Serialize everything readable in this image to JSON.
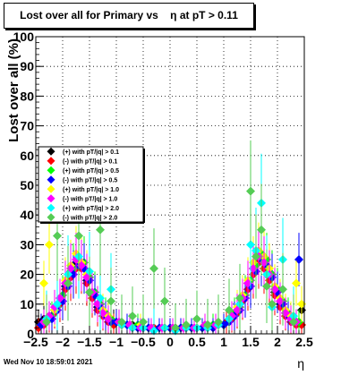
{
  "chart_data": {
    "type": "scatter",
    "title": "Lost over all for Primary vs    η at pT > 0.11",
    "xlabel": "η",
    "ylabel": "Lost over all (%)",
    "xlim": [
      -2.5,
      2.5
    ],
    "ylim": [
      0,
      100
    ],
    "xticks": [
      "−2.5",
      "−2",
      "−1.5",
      "−1",
      "−0.5",
      "0",
      "0.5",
      "1",
      "1.5",
      "2",
      "2.5"
    ],
    "yticks": [
      "0",
      "10",
      "20",
      "30",
      "40",
      "50",
      "60",
      "70",
      "80",
      "90",
      "100"
    ],
    "grid": true,
    "legend_position": "left",
    "series": [
      {
        "name": "(+) with pT/|q| > 0.1",
        "color": "#000000",
        "marker": "diamond",
        "x": [
          -2.45,
          -2.35,
          -2.25,
          -2.15,
          -2.05,
          -1.95,
          -1.85,
          -1.75,
          -1.65,
          -1.55,
          -1.45,
          -1.35,
          -1.25,
          -1.15,
          -1.05,
          -0.9,
          -0.7,
          -0.5,
          -0.3,
          -0.1,
          0.1,
          0.3,
          0.5,
          0.7,
          0.9,
          1.05,
          1.15,
          1.25,
          1.35,
          1.45,
          1.55,
          1.65,
          1.75,
          1.85,
          1.95,
          2.05,
          2.15,
          2.25,
          2.35,
          2.45
        ],
        "y": [
          4,
          5,
          6,
          8,
          12,
          16,
          21,
          24,
          23,
          18,
          13,
          9,
          7,
          5,
          4,
          3,
          3,
          2,
          2,
          2,
          2,
          2,
          2,
          3,
          3,
          4,
          6,
          8,
          12,
          17,
          22,
          26,
          24,
          19,
          14,
          10,
          7,
          5,
          4,
          8
        ]
      },
      {
        "name": "(-) with pT/|q| > 0.1",
        "color": "#ff0000",
        "marker": "diamond",
        "x": [
          -2.45,
          -2.35,
          -2.25,
          -2.15,
          -2.05,
          -1.95,
          -1.85,
          -1.75,
          -1.65,
          -1.55,
          -1.45,
          -1.35,
          -1.25,
          -1.15,
          -1.05,
          -0.9,
          -0.7,
          -0.5,
          -0.3,
          -0.1,
          0.1,
          0.3,
          0.5,
          0.7,
          0.9,
          1.05,
          1.15,
          1.25,
          1.35,
          1.45,
          1.55,
          1.65,
          1.75,
          1.85,
          1.95,
          2.05,
          2.15,
          2.25,
          2.35,
          2.45
        ],
        "y": [
          2,
          3,
          5,
          7,
          10,
          15,
          19,
          22,
          22,
          17,
          12,
          8,
          6,
          4,
          3,
          3,
          2,
          2,
          2,
          2,
          2,
          2,
          2,
          2,
          3,
          4,
          5,
          7,
          11,
          15,
          20,
          24,
          22,
          18,
          13,
          9,
          6,
          4,
          3,
          3
        ]
      },
      {
        "name": "(+) with pT/|q| > 0.5",
        "color": "#00ff00",
        "marker": "diamond",
        "x": [
          -2.4,
          -2.3,
          -2.2,
          -2.1,
          -2.0,
          -1.9,
          -1.8,
          -1.7,
          -1.6,
          -1.5,
          -1.4,
          -1.3,
          -1.2,
          -1.1,
          -1.0,
          -0.8,
          -0.6,
          -0.4,
          -0.2,
          0.0,
          0.2,
          0.4,
          0.6,
          0.8,
          1.0,
          1.1,
          1.2,
          1.3,
          1.4,
          1.5,
          1.6,
          1.7,
          1.8,
          1.9,
          2.0,
          2.1,
          2.2,
          2.3,
          2.4
        ],
        "y": [
          3,
          4,
          6,
          9,
          13,
          17,
          22,
          25,
          24,
          19,
          14,
          10,
          7,
          5,
          4,
          3,
          3,
          2,
          2,
          2,
          2,
          2,
          2,
          3,
          3,
          5,
          7,
          9,
          13,
          18,
          23,
          27,
          25,
          20,
          15,
          11,
          7,
          5,
          4
        ]
      },
      {
        "name": "(-) with pT/|q| > 0.5",
        "color": "#0000ff",
        "marker": "diamond",
        "x": [
          -2.4,
          -2.3,
          -2.2,
          -2.1,
          -2.0,
          -1.9,
          -1.8,
          -1.7,
          -1.6,
          -1.5,
          -1.4,
          -1.3,
          -1.2,
          -1.1,
          -1.0,
          -0.8,
          -0.6,
          -0.4,
          -0.2,
          0.0,
          0.2,
          0.4,
          0.6,
          0.8,
          1.0,
          1.1,
          1.2,
          1.3,
          1.4,
          1.5,
          1.6,
          1.7,
          1.8,
          1.9,
          2.0,
          2.1,
          2.2,
          2.3,
          2.4
        ],
        "y": [
          3,
          4,
          5,
          8,
          11,
          16,
          20,
          23,
          22,
          18,
          13,
          9,
          6,
          4,
          4,
          3,
          2,
          2,
          2,
          2,
          2,
          2,
          2,
          2,
          3,
          4,
          6,
          8,
          12,
          16,
          21,
          25,
          23,
          19,
          14,
          10,
          6,
          4,
          25
        ]
      },
      {
        "name": "(+) with pT/|q| > 1.0",
        "color": "#ffff00",
        "marker": "diamond",
        "x": [
          -2.35,
          -2.25,
          -2.15,
          -2.05,
          -1.95,
          -1.85,
          -1.75,
          -1.65,
          -1.55,
          -1.45,
          -1.35,
          -1.25,
          -1.15,
          -0.95,
          -0.75,
          -0.55,
          -0.35,
          -0.15,
          0.05,
          0.25,
          0.45,
          0.65,
          0.85,
          1.15,
          1.25,
          1.35,
          1.45,
          1.55,
          1.65,
          1.75,
          1.85,
          1.95,
          2.05,
          2.15,
          2.25,
          2.35,
          2.45
        ],
        "y": [
          17,
          30,
          8,
          12,
          18,
          23,
          27,
          24,
          20,
          14,
          10,
          8,
          6,
          4,
          3,
          3,
          2,
          2,
          2,
          2,
          2,
          3,
          3,
          6,
          9,
          13,
          18,
          24,
          28,
          26,
          22,
          16,
          12,
          8,
          6,
          17,
          10
        ]
      },
      {
        "name": "(-) with pT/|q| > 1.0",
        "color": "#ff00ff",
        "marker": "diamond",
        "x": [
          -2.35,
          -2.25,
          -2.15,
          -2.05,
          -1.95,
          -1.85,
          -1.75,
          -1.65,
          -1.55,
          -1.45,
          -1.35,
          -1.25,
          -1.15,
          -0.95,
          -0.75,
          -0.55,
          -0.35,
          -0.15,
          0.05,
          0.25,
          0.45,
          0.65,
          0.85,
          1.15,
          1.25,
          1.35,
          1.45,
          1.55,
          1.65,
          1.75,
          1.85,
          1.95,
          2.05,
          2.15,
          2.25,
          2.35
        ],
        "y": [
          4,
          6,
          9,
          12,
          17,
          22,
          25,
          23,
          19,
          14,
          10,
          7,
          5,
          4,
          3,
          2,
          2,
          2,
          2,
          2,
          2,
          3,
          3,
          6,
          8,
          12,
          17,
          22,
          26,
          24,
          20,
          15,
          11,
          7,
          5,
          4
        ]
      },
      {
        "name": "(+) with pT/|q| > 2.0",
        "color": "#00ffff",
        "marker": "diamond",
        "x": [
          -2.3,
          -2.1,
          -1.9,
          -1.7,
          -1.5,
          -1.3,
          -1.1,
          -0.9,
          -0.7,
          -0.5,
          -0.3,
          -0.1,
          0.1,
          0.3,
          0.5,
          0.7,
          0.9,
          1.1,
          1.3,
          1.5,
          1.6,
          1.7,
          1.8,
          1.9,
          2.1,
          2.3
        ],
        "y": [
          5,
          10,
          20,
          26,
          21,
          12,
          15,
          3,
          2,
          2,
          1,
          2,
          1,
          2,
          2,
          2,
          3,
          5,
          10,
          30,
          28,
          44,
          20,
          9,
          25,
          6
        ]
      },
      {
        "name": "(-) with pT/|q| > 2.0",
        "color": "#55cc55",
        "marker": "diamond",
        "x": [
          -2.3,
          -2.1,
          -1.9,
          -1.7,
          -1.5,
          -1.3,
          -1.1,
          -0.9,
          -0.7,
          -0.5,
          -0.3,
          -0.1,
          0.1,
          0.3,
          0.5,
          0.7,
          0.9,
          1.1,
          1.3,
          1.5,
          1.6,
          1.7,
          1.8,
          1.9,
          2.1,
          2.3
        ],
        "y": [
          4,
          33,
          17,
          33,
          14,
          35,
          11,
          4,
          6,
          4,
          22,
          11,
          2,
          3,
          5,
          3,
          4,
          8,
          12,
          48,
          26,
          35,
          16,
          10,
          15,
          4
        ]
      }
    ]
  },
  "footer": {
    "timestamp": "Wed Nov 10 18:59:01 2021"
  }
}
